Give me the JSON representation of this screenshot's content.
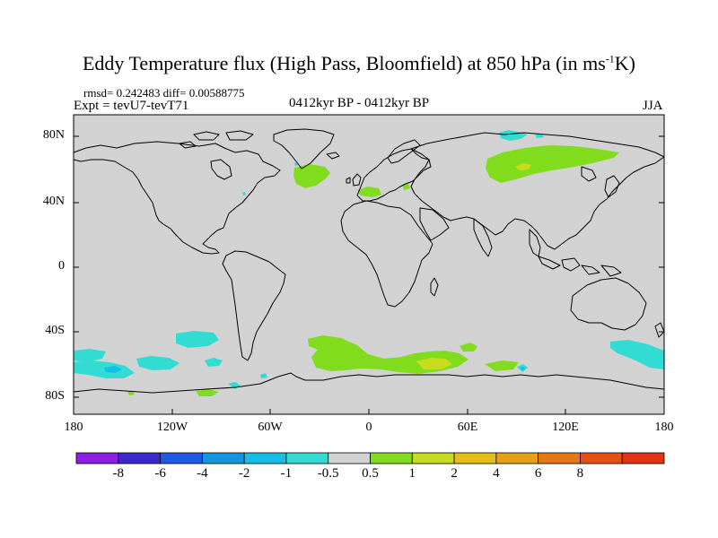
{
  "title": {
    "main": "Eddy Temperature flux (High Pass, Bloomfield) at 850 hPa (in ms",
    "sup": "-1",
    "tail": "K)"
  },
  "stats": "rmsd= 0.242483 diff= 0.00588775",
  "experiment": "Expt = tevU7-tevT71",
  "period": "0412kyr BP - 0412kyr BP",
  "season": "JJA",
  "axes": {
    "y_ticks": [
      "80N",
      "40N",
      "0",
      "40S",
      "80S"
    ],
    "x_ticks": [
      "180",
      "120W",
      "60W",
      "0",
      "60E",
      "120E",
      "180"
    ]
  },
  "colorbar": {
    "colors": [
      "#8c1ee6",
      "#3c28d2",
      "#1e5ae6",
      "#1496dc",
      "#14bee6",
      "#32dcd2",
      "#d2d2d2",
      "#82dc1e",
      "#c8dc1e",
      "#e6be14",
      "#e6a014",
      "#e67814",
      "#e65014",
      "#e63214"
    ],
    "labels": [
      "-8",
      "-6",
      "-4",
      "-2",
      "-1",
      "-0.5",
      "0.5",
      "1",
      "2",
      "4",
      "6",
      "8"
    ]
  },
  "fill_colors": {
    "background": "#d2d2d2",
    "green": "#82dc1e",
    "yellow": "#c8dc1e",
    "cyan": "#32dcd2",
    "cyan_dark": "#14bee6"
  }
}
